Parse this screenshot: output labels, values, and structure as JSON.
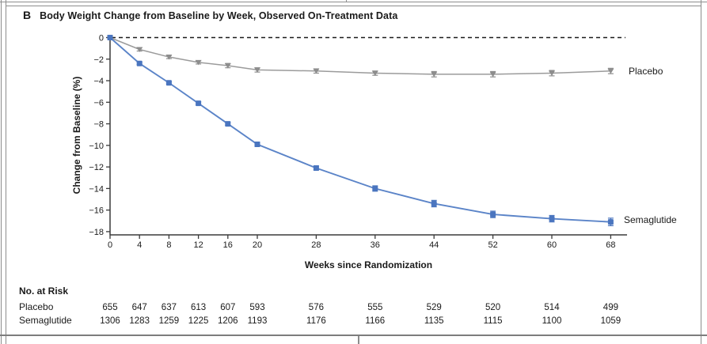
{
  "panel": {
    "letter": "B",
    "title": "Body Weight Change from Baseline by Week, Observed On-Treatment Data"
  },
  "chart_data": {
    "type": "line",
    "title": "Body Weight Change from Baseline by Week, Observed On-Treatment Data",
    "xlabel": "Weeks since Randomization",
    "ylabel": "Change from Baseline (%)",
    "x": [
      0,
      4,
      8,
      12,
      16,
      20,
      28,
      36,
      44,
      52,
      60,
      68
    ],
    "x_tick_labels": [
      "0",
      "4",
      "8",
      "12",
      "16",
      "20",
      "28",
      "36",
      "44",
      "52",
      "60",
      "68"
    ],
    "y_ticks": [
      0,
      -2,
      -4,
      -6,
      -8,
      -10,
      -12,
      -14,
      -16,
      -18
    ],
    "y_tick_labels": [
      "0",
      "−2",
      "−4",
      "−6",
      "−8",
      "−10",
      "−12",
      "−14",
      "−16",
      "−18"
    ],
    "xlim": [
      0,
      70.2
    ],
    "ylim": [
      -18,
      0
    ],
    "grid": false,
    "zero_reference_line": "dashed",
    "legend_position": "right of line ends",
    "series": [
      {
        "name": "Placebo",
        "marker": "triangle-down",
        "color": "#9b9b9b",
        "marker_color": "#8d8d8d",
        "values": [
          0,
          -1.1,
          -1.8,
          -2.3,
          -2.6,
          -3.0,
          -3.1,
          -3.3,
          -3.4,
          -3.4,
          -3.3,
          -3.1
        ],
        "errors": [
          0,
          0.15,
          0.15,
          0.15,
          0.2,
          0.2,
          0.2,
          0.2,
          0.25,
          0.25,
          0.25,
          0.25
        ]
      },
      {
        "name": "Semaglutide",
        "marker": "square",
        "color": "#5b84c8",
        "marker_color": "#4a75bf",
        "values": [
          0,
          -2.4,
          -4.2,
          -6.1,
          -8.0,
          -9.9,
          -12.1,
          -14.0,
          -15.4,
          -16.4,
          -16.8,
          -17.1
        ],
        "errors": [
          0,
          0.1,
          0.1,
          0.15,
          0.15,
          0.2,
          0.2,
          0.25,
          0.3,
          0.3,
          0.3,
          0.35
        ]
      }
    ]
  },
  "risk_table": {
    "title": "No. at Risk",
    "rows": [
      {
        "label": "Placebo",
        "values": [
          "655",
          "647",
          "637",
          "613",
          "607",
          "593",
          "576",
          "555",
          "529",
          "520",
          "514",
          "499"
        ]
      },
      {
        "label": "Semaglutide",
        "values": [
          "1306",
          "1283",
          "1259",
          "1225",
          "1206",
          "1193",
          "1176",
          "1166",
          "1135",
          "1115",
          "1100",
          "1059"
        ]
      }
    ]
  },
  "colors": {
    "axis": "#3a3a3a",
    "zero_line": "#1c1c1c",
    "frame": "#8c8c8c"
  }
}
